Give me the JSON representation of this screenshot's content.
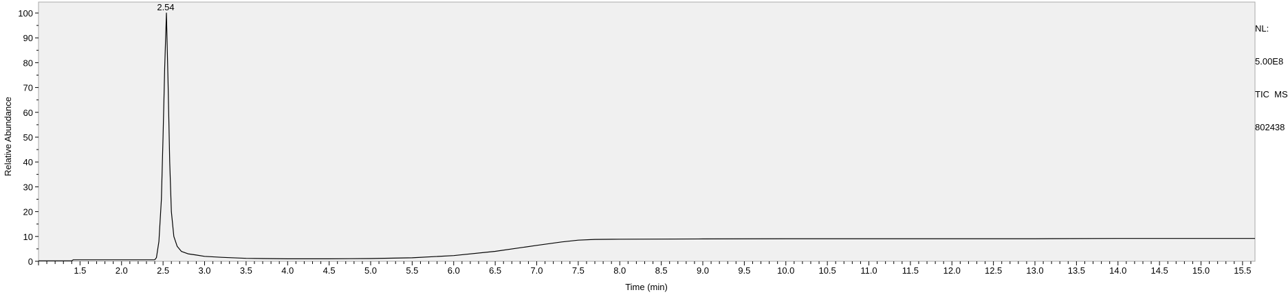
{
  "chart_data": {
    "type": "line",
    "title": "",
    "xlabel": "Time (min)",
    "ylabel": "Relative Abundance",
    "xlim": [
      1.0,
      15.65
    ],
    "ylim": [
      0,
      100
    ],
    "x_ticks": [
      "1.5",
      "2.0",
      "2.5",
      "3.0",
      "3.5",
      "4.0",
      "4.5",
      "5.0",
      "5.5",
      "6.0",
      "6.5",
      "7.0",
      "7.5",
      "8.0",
      "8.5",
      "9.0",
      "9.5",
      "10.0",
      "10.5",
      "11.0",
      "11.5",
      "12.0",
      "12.5",
      "13.0",
      "13.5",
      "14.0",
      "14.5",
      "15.0",
      "15.5"
    ],
    "y_ticks": [
      "0",
      "10",
      "20",
      "30",
      "40",
      "50",
      "60",
      "70",
      "80",
      "90",
      "100"
    ],
    "grid": false,
    "peak_label": "2.54",
    "info_lines": [
      "NL:",
      "5.00E8",
      "TIC  MS",
      "802438"
    ],
    "series": [
      {
        "x": [
          1.0,
          1.4,
          1.42,
          2.4,
          2.42,
          2.45,
          2.48,
          2.5,
          2.52,
          2.54,
          2.56,
          2.58,
          2.6,
          2.63,
          2.67,
          2.72,
          2.8,
          2.9,
          3.0,
          3.2,
          3.5,
          4.0,
          4.5,
          5.0,
          5.5,
          6.0,
          6.5,
          7.0,
          7.3,
          7.5,
          7.7,
          8.0,
          9.0,
          10.0,
          11.0,
          12.0,
          13.0,
          14.0,
          15.0,
          15.65
        ],
        "y": [
          0.2,
          0.2,
          0.6,
          0.6,
          1.5,
          8,
          25,
          50,
          78,
          100,
          72,
          40,
          20,
          10,
          6,
          4,
          3,
          2.5,
          2.0,
          1.6,
          1.2,
          1.0,
          1.0,
          1.1,
          1.4,
          2.3,
          4.0,
          6.4,
          7.8,
          8.5,
          8.8,
          8.9,
          9.0,
          9.1,
          9.1,
          9.1,
          9.1,
          9.2,
          9.2,
          9.2
        ]
      }
    ]
  }
}
